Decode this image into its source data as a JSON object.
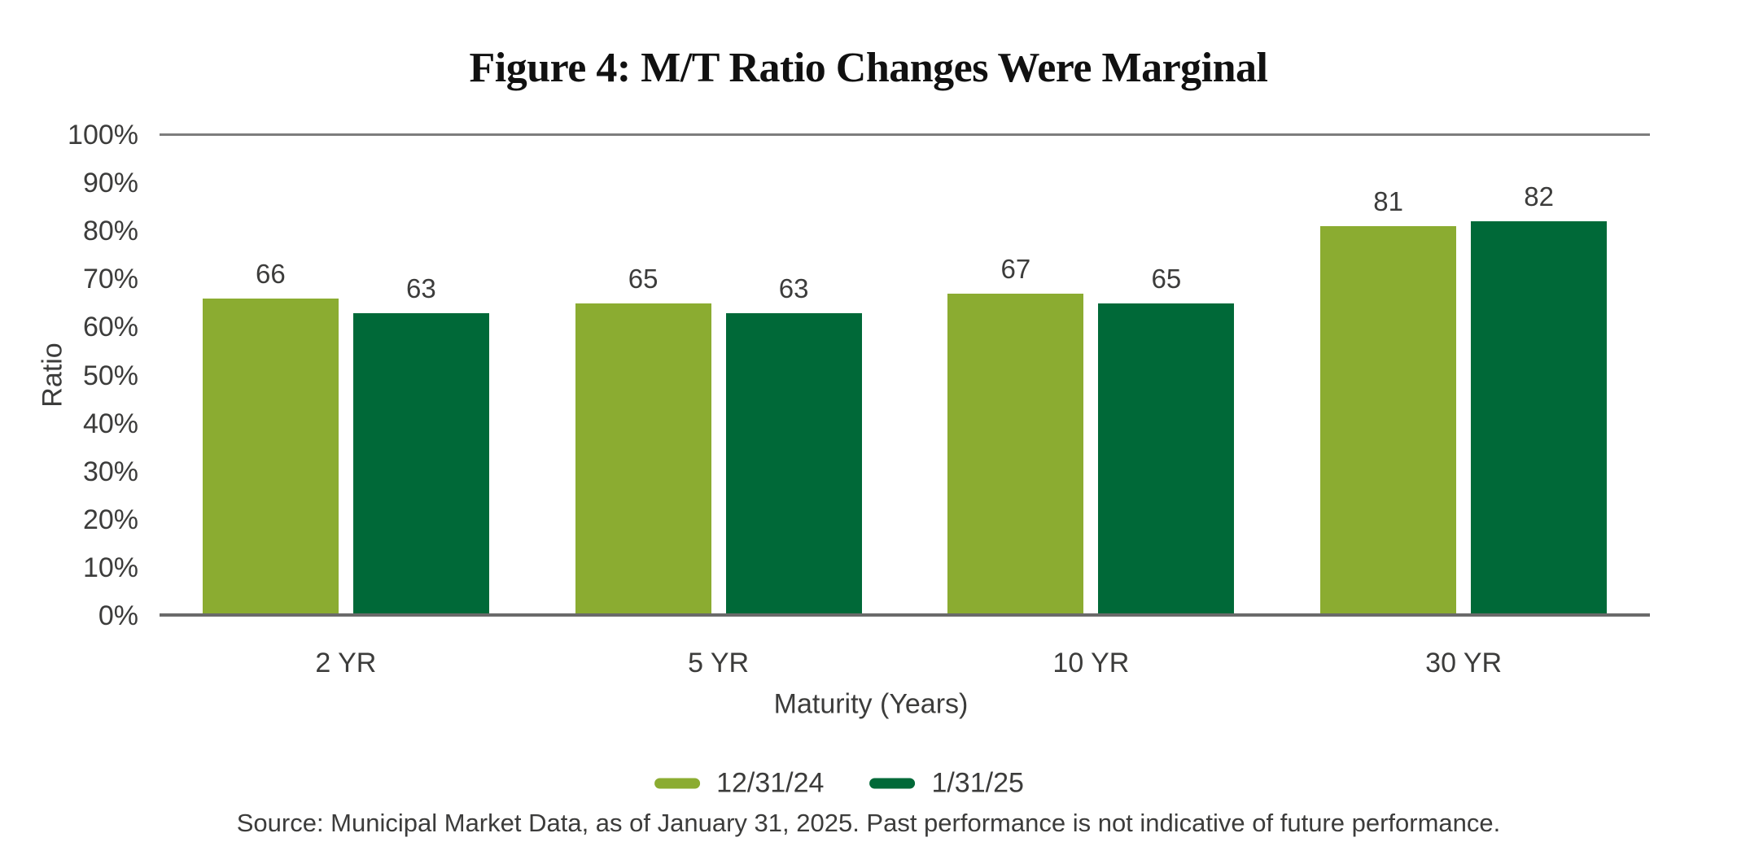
{
  "title": "Figure 4: M/T Ratio Changes Were Marginal",
  "source": "Source: Municipal Market Data, as of January 31, 2025. Past performance is not indicative of future performance.",
  "chart_data": {
    "type": "bar",
    "categories": [
      "2 YR",
      "5 YR",
      "10 YR",
      "30 YR"
    ],
    "series": [
      {
        "name": "12/31/24",
        "color": "#8BAC31",
        "values": [
          66,
          65,
          67,
          81
        ]
      },
      {
        "name": "1/31/25",
        "color": "#006938",
        "values": [
          63,
          63,
          65,
          82
        ]
      }
    ],
    "title": "Figure 4: M/T Ratio Changes Were Marginal",
    "xlabel": "Maturity (Years)",
    "ylabel": "Ratio",
    "ylim": [
      0,
      100
    ],
    "ytick_step": 10,
    "ytick_suffix": "%",
    "grid": "top-line-only",
    "legend_position": "bottom-center",
    "value_labels": true
  }
}
